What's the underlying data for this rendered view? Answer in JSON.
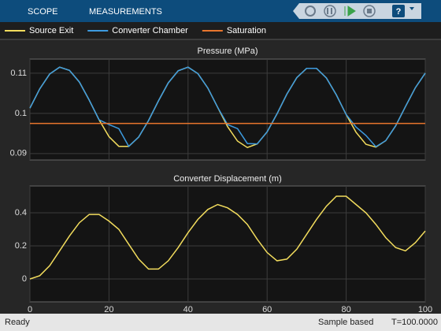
{
  "toolbar": {
    "tabs": [
      "SCOPE",
      "MEASUREMENTS"
    ]
  },
  "status": {
    "left": "Ready",
    "mode": "Sample based",
    "time": "T=100.0000"
  },
  "chart_data": [
    {
      "type": "line",
      "title": "Pressure (MPa)",
      "x": [
        0,
        2.5,
        5,
        7.5,
        10,
        12.5,
        15,
        17.5,
        20,
        22.5,
        25,
        27.5,
        30,
        32.5,
        35,
        37.5,
        40,
        42.5,
        45,
        47.5,
        50,
        52.5,
        55,
        57.5,
        60,
        62.5,
        65,
        67.5,
        70,
        72.5,
        75,
        77.5,
        80,
        82.5,
        85,
        87.5,
        90,
        92.5,
        95,
        97.5,
        100
      ],
      "series": [
        {
          "name": "Source Exit",
          "color": "#f2dc5d",
          "values": [
            0.1013,
            0.1061,
            0.1098,
            0.1115,
            0.1107,
            0.1078,
            0.1033,
            0.0984,
            0.0942,
            0.0918,
            0.0918,
            0.0941,
            0.0982,
            0.1031,
            0.1076,
            0.1106,
            0.1115,
            0.1099,
            0.1063,
            0.1015,
            0.0967,
            0.0931,
            0.0915,
            0.0924,
            0.0954,
            0.0999,
            0.1048,
            0.1089,
            0.1112,
            0.1112,
            0.1088,
            0.1046,
            0.0997,
            0.0953,
            0.0923,
            0.0916,
            0.0932,
            0.0969,
            0.1017,
            0.1064,
            0.11
          ]
        },
        {
          "name": "Converter Chamber",
          "color": "#3d9be0",
          "values": [
            0.1013,
            0.1061,
            0.1098,
            0.1115,
            0.1107,
            0.1078,
            0.1033,
            0.0984,
            0.0972,
            0.0962,
            0.0918,
            0.0941,
            0.0982,
            0.1031,
            0.1076,
            0.1106,
            0.1115,
            0.1099,
            0.1063,
            0.1015,
            0.0972,
            0.0962,
            0.0925,
            0.0924,
            0.0954,
            0.0999,
            0.1048,
            0.1089,
            0.1112,
            0.1112,
            0.1088,
            0.1046,
            0.0997,
            0.0966,
            0.0945,
            0.0917,
            0.0932,
            0.0969,
            0.1017,
            0.1064,
            0.11
          ]
        },
        {
          "name": "Saturation",
          "color": "#e8762d",
          "values": [
            0.0975,
            0.0975,
            0.0975,
            0.0975,
            0.0975,
            0.0975,
            0.0975,
            0.0975,
            0.0975,
            0.0975,
            0.0975,
            0.0975,
            0.0975,
            0.0975,
            0.0975,
            0.0975,
            0.0975,
            0.0975,
            0.0975,
            0.0975,
            0.0975,
            0.0975,
            0.0975,
            0.0975,
            0.0975,
            0.0975,
            0.0975,
            0.0975,
            0.0975,
            0.0975,
            0.0975,
            0.0975,
            0.0975,
            0.0975,
            0.0975,
            0.0975,
            0.0975,
            0.0975,
            0.0975,
            0.0975,
            0.0975
          ]
        }
      ],
      "xlim": [
        0,
        100
      ],
      "ylim": [
        0.0884,
        0.1135
      ],
      "yticks": [
        0.09,
        0.1,
        0.11
      ],
      "grid": true
    },
    {
      "type": "line",
      "title": "Converter Displacement (m)",
      "x": [
        0,
        2.5,
        5,
        7.5,
        10,
        12.5,
        15,
        17.5,
        20,
        22.5,
        25,
        27.5,
        30,
        32.5,
        35,
        37.5,
        40,
        42.5,
        45,
        47.5,
        50,
        52.5,
        55,
        57.5,
        60,
        62.5,
        65,
        67.5,
        70,
        72.5,
        75,
        77.5,
        80,
        82.5,
        85,
        87.5,
        90,
        92.5,
        95,
        97.5,
        100
      ],
      "series": [
        {
          "color": "#f2dc5d",
          "values": [
            0,
            0.02,
            0.08,
            0.17,
            0.26,
            0.34,
            0.39,
            0.39,
            0.35,
            0.3,
            0.21,
            0.12,
            0.06,
            0.06,
            0.11,
            0.19,
            0.28,
            0.36,
            0.42,
            0.45,
            0.43,
            0.39,
            0.33,
            0.24,
            0.16,
            0.11,
            0.12,
            0.18,
            0.27,
            0.36,
            0.44,
            0.5,
            0.5,
            0.45,
            0.4,
            0.33,
            0.25,
            0.19,
            0.17,
            0.22,
            0.29
          ]
        }
      ],
      "xlim": [
        0,
        100
      ],
      "ylim": [
        -0.138,
        0.562
      ],
      "yticks": [
        0,
        0.2,
        0.4
      ],
      "xticks": [
        0,
        20,
        40,
        60,
        80,
        100
      ],
      "grid": true
    }
  ]
}
